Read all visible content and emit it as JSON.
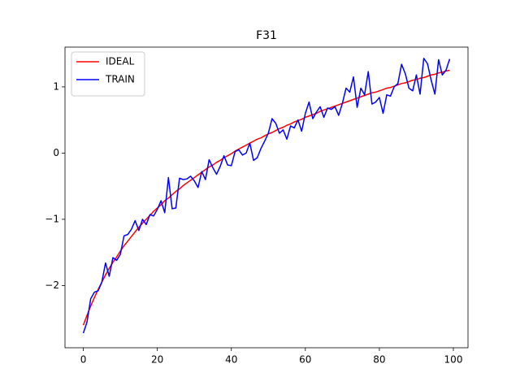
{
  "chart_data": {
    "type": "line",
    "title": "F31",
    "x": [
      0,
      1,
      2,
      3,
      4,
      5,
      6,
      7,
      8,
      9,
      10,
      11,
      12,
      13,
      14,
      15,
      16,
      17,
      18,
      19,
      20,
      21,
      22,
      23,
      24,
      25,
      26,
      27,
      28,
      29,
      30,
      31,
      32,
      33,
      34,
      35,
      36,
      37,
      38,
      39,
      40,
      41,
      42,
      43,
      44,
      45,
      46,
      47,
      48,
      49,
      50,
      51,
      52,
      53,
      54,
      55,
      56,
      57,
      58,
      59,
      60,
      61,
      62,
      63,
      64,
      65,
      66,
      67,
      68,
      69,
      70,
      71,
      72,
      73,
      74,
      75,
      76,
      77,
      78,
      79,
      80,
      81,
      82,
      83,
      84,
      85,
      86,
      87,
      88,
      89,
      90,
      91,
      92,
      93,
      94,
      95,
      96,
      97,
      98,
      99
    ],
    "series": [
      {
        "name": "IDEAL",
        "color": "#ff0000",
        "values": [
          -2.6,
          -2.45,
          -2.31,
          -2.18,
          -2.06,
          -1.95,
          -1.84,
          -1.74,
          -1.65,
          -1.57,
          -1.48,
          -1.4,
          -1.33,
          -1.26,
          -1.19,
          -1.12,
          -1.06,
          -1.0,
          -0.94,
          -0.88,
          -0.83,
          -0.78,
          -0.72,
          -0.68,
          -0.63,
          -0.58,
          -0.54,
          -0.49,
          -0.45,
          -0.41,
          -0.37,
          -0.33,
          -0.29,
          -0.25,
          -0.21,
          -0.18,
          -0.14,
          -0.11,
          -0.07,
          -0.04,
          -0.01,
          0.03,
          0.06,
          0.09,
          0.12,
          0.15,
          0.18,
          0.21,
          0.23,
          0.26,
          0.29,
          0.31,
          0.34,
          0.37,
          0.39,
          0.42,
          0.44,
          0.47,
          0.49,
          0.51,
          0.54,
          0.56,
          0.58,
          0.6,
          0.63,
          0.65,
          0.67,
          0.69,
          0.71,
          0.73,
          0.75,
          0.77,
          0.79,
          0.81,
          0.83,
          0.85,
          0.87,
          0.89,
          0.91,
          0.92,
          0.94,
          0.96,
          0.98,
          0.99,
          1.01,
          1.03,
          1.05,
          1.06,
          1.08,
          1.1,
          1.11,
          1.13,
          1.14,
          1.16,
          1.18,
          1.19,
          1.21,
          1.22,
          1.24,
          1.25
        ]
      },
      {
        "name": "TRAIN",
        "color": "#0000ff",
        "values": [
          -2.72,
          -2.55,
          -2.2,
          -2.1,
          -2.08,
          -1.95,
          -1.66,
          -1.86,
          -1.58,
          -1.62,
          -1.53,
          -1.25,
          -1.23,
          -1.15,
          -1.02,
          -1.17,
          -1.0,
          -1.08,
          -0.93,
          -0.95,
          -0.85,
          -0.72,
          -0.9,
          -0.37,
          -0.84,
          -0.83,
          -0.38,
          -0.4,
          -0.39,
          -0.35,
          -0.42,
          -0.52,
          -0.28,
          -0.4,
          -0.1,
          -0.22,
          -0.32,
          -0.2,
          -0.04,
          -0.18,
          -0.19,
          0.02,
          0.05,
          -0.03,
          0.0,
          0.15,
          -0.11,
          -0.07,
          0.07,
          0.18,
          0.3,
          0.52,
          0.45,
          0.3,
          0.35,
          0.21,
          0.41,
          0.38,
          0.5,
          0.33,
          0.6,
          0.77,
          0.52,
          0.62,
          0.7,
          0.54,
          0.68,
          0.66,
          0.7,
          0.57,
          0.75,
          0.98,
          0.92,
          1.15,
          0.69,
          0.98,
          0.88,
          1.23,
          0.74,
          0.77,
          0.84,
          0.6,
          0.88,
          0.86,
          1.0,
          1.05,
          1.34,
          1.2,
          0.98,
          0.94,
          1.18,
          0.89,
          1.43,
          1.35,
          1.1,
          0.89,
          1.41,
          1.18,
          1.25,
          1.42
        ]
      }
    ],
    "xlim": [
      -4.95,
      103.95
    ],
    "ylim": [
      -2.94,
      1.6
    ],
    "xticks": [
      0,
      20,
      40,
      60,
      80,
      100
    ],
    "yticks": [
      {
        "value": -2,
        "label": "−2"
      },
      {
        "value": -1,
        "label": "−1"
      },
      0,
      1
    ],
    "legend": "upper left"
  }
}
